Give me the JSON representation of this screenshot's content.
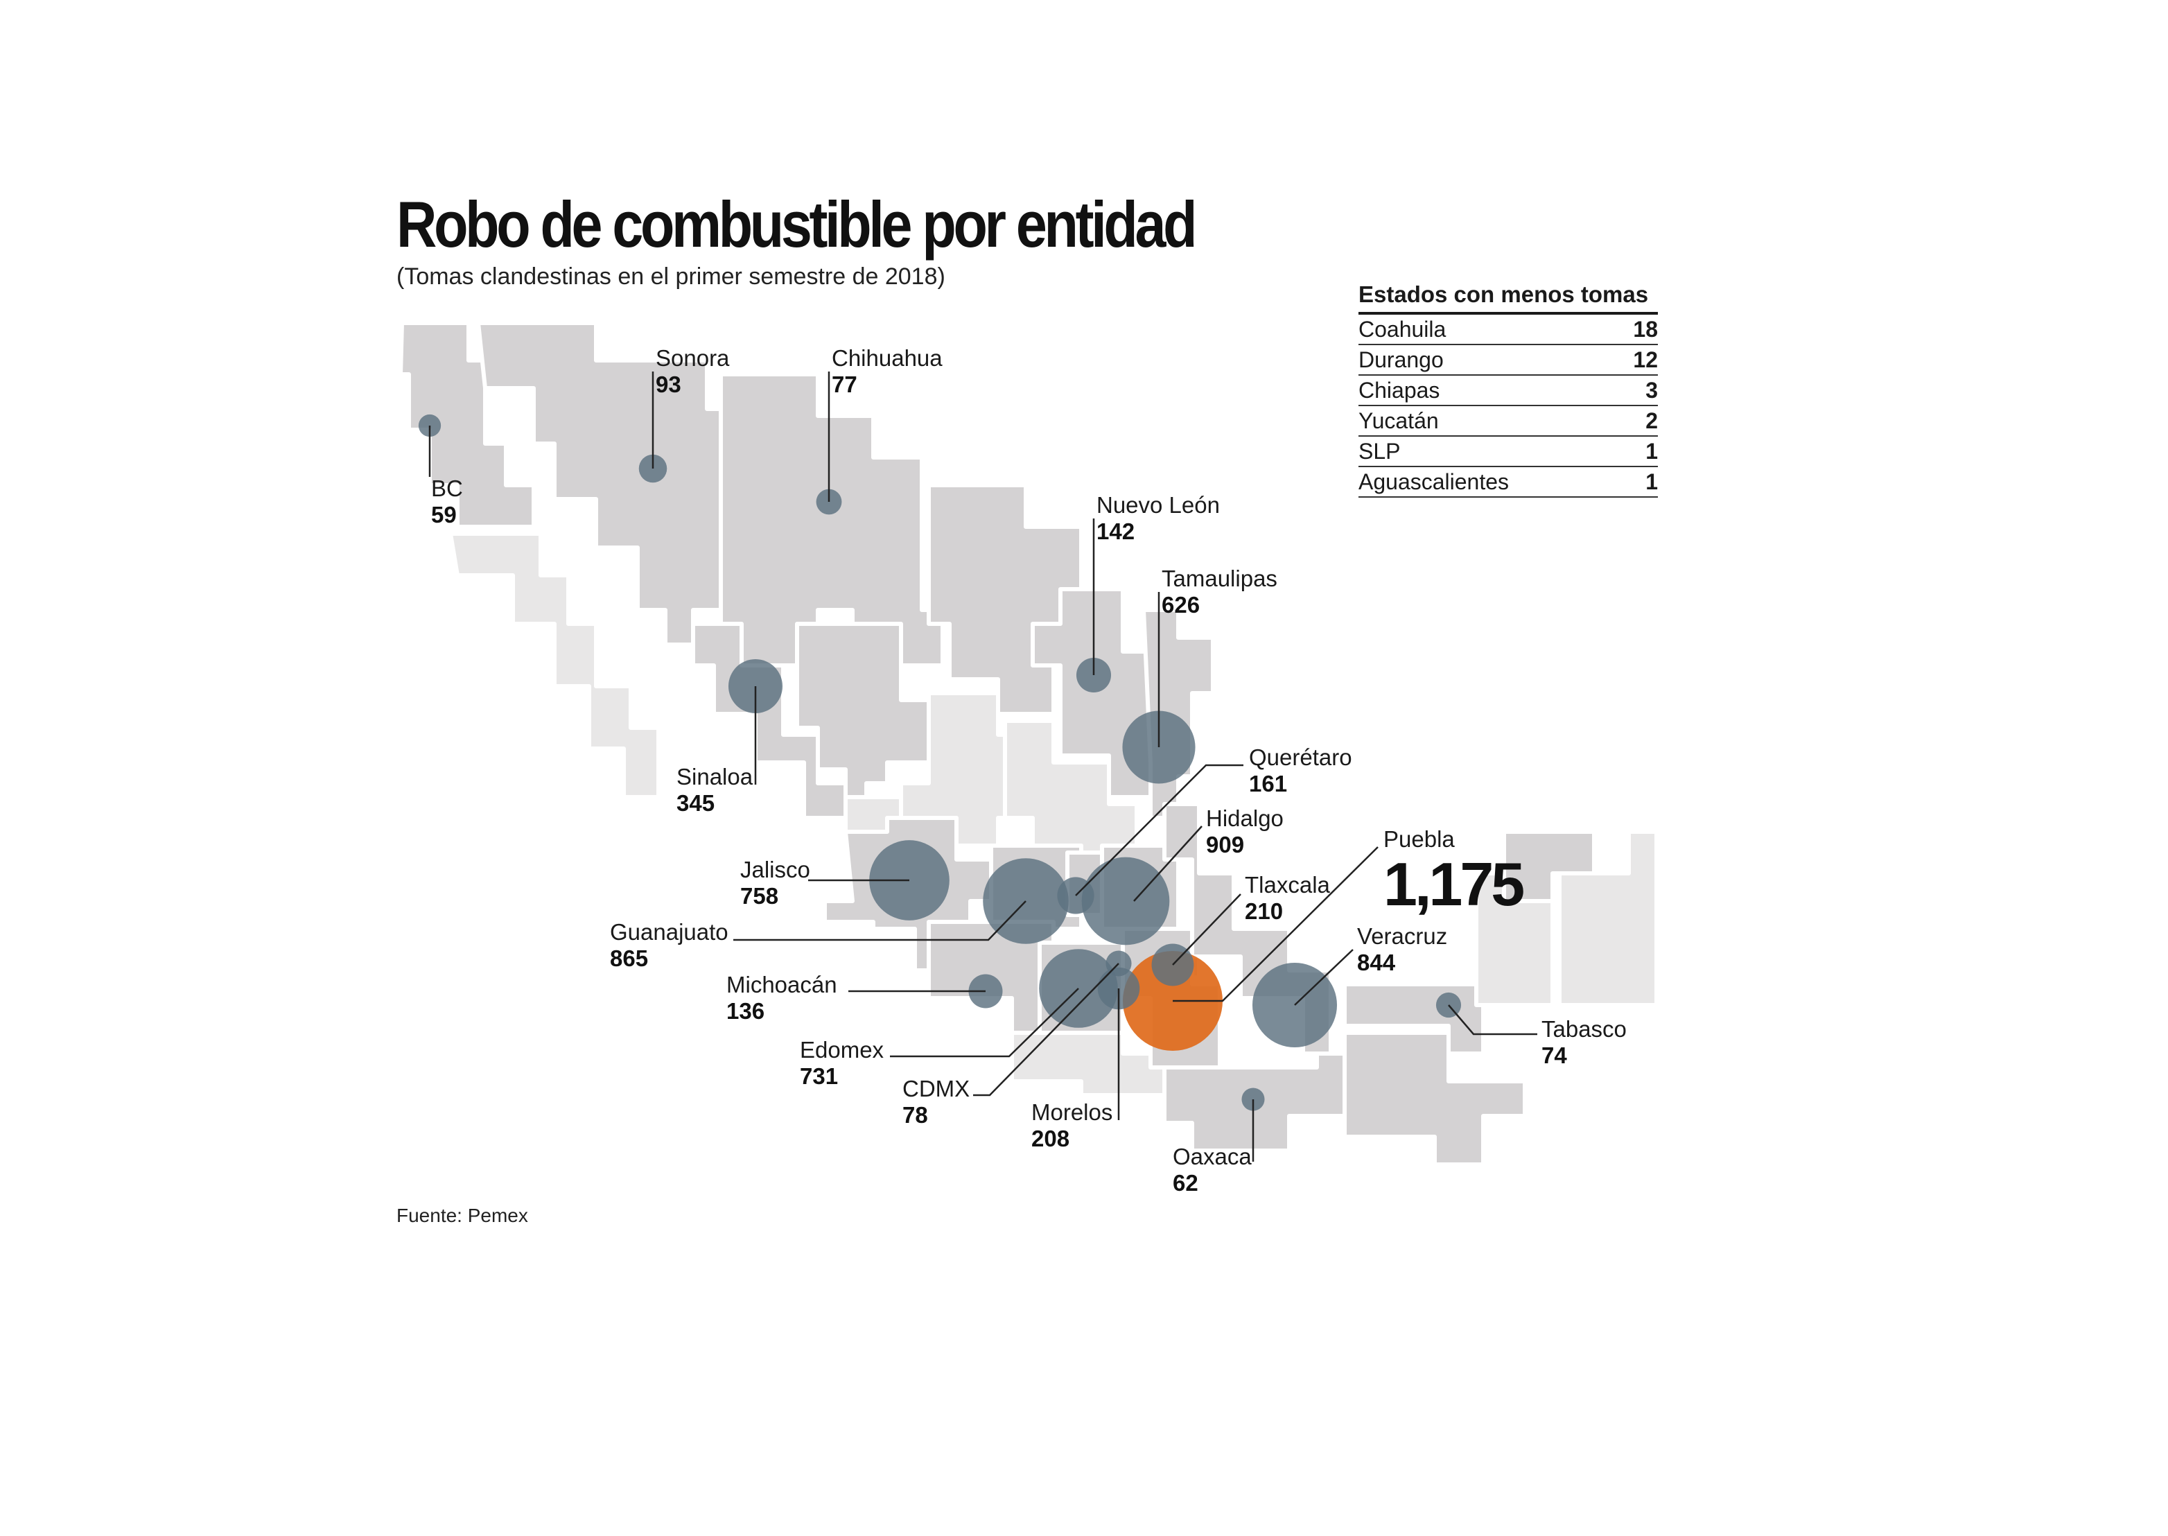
{
  "title": "Robo de combustible por entidad",
  "subtitle": "(Tomas clandestinas en el primer semestre de 2018)",
  "source": "Fuente: Pemex",
  "colors": {
    "bubble": "#5d7280",
    "highlight": "#e06a1b",
    "state_dark": "#d4d2d3",
    "state_light": "#e8e7e7"
  },
  "table": {
    "heading": "Estados con menos tomas",
    "rows": [
      {
        "name": "Coahuila",
        "value": "18"
      },
      {
        "name": "Durango",
        "value": "12"
      },
      {
        "name": "Chiapas",
        "value": "3"
      },
      {
        "name": "Yucatán",
        "value": "2"
      },
      {
        "name": "SLP",
        "value": "1"
      },
      {
        "name": "Aguascalientes",
        "value": "1"
      }
    ]
  },
  "states": [
    {
      "id": "bc",
      "name": "BC",
      "value": "59",
      "highlight": false
    },
    {
      "id": "sonora",
      "name": "Sonora",
      "value": "93",
      "highlight": false
    },
    {
      "id": "chihuahua",
      "name": "Chihuahua",
      "value": "77",
      "highlight": false
    },
    {
      "id": "nuevo-leon",
      "name": "Nuevo León",
      "value": "142",
      "highlight": false
    },
    {
      "id": "tamaulipas",
      "name": "Tamaulipas",
      "value": "626",
      "highlight": false
    },
    {
      "id": "sinaloa",
      "name": "Sinaloa",
      "value": "345",
      "highlight": false
    },
    {
      "id": "queretaro",
      "name": "Querétaro",
      "value": "161",
      "highlight": false
    },
    {
      "id": "hidalgo",
      "name": "Hidalgo",
      "value": "909",
      "highlight": false
    },
    {
      "id": "jalisco",
      "name": "Jalisco",
      "value": "758",
      "highlight": false
    },
    {
      "id": "puebla",
      "name": "Puebla",
      "value": "1,175",
      "highlight": true
    },
    {
      "id": "tlaxcala",
      "name": "Tlaxcala",
      "value": "210",
      "highlight": false
    },
    {
      "id": "guanajuato",
      "name": "Guanajuato",
      "value": "865",
      "highlight": false
    },
    {
      "id": "veracruz",
      "name": "Veracruz",
      "value": "844",
      "highlight": false
    },
    {
      "id": "michoacan",
      "name": "Michoacán",
      "value": "136",
      "highlight": false
    },
    {
      "id": "tabasco",
      "name": "Tabasco",
      "value": "74",
      "highlight": false
    },
    {
      "id": "edomex",
      "name": "Edomex",
      "value": "731",
      "highlight": false
    },
    {
      "id": "cdmx",
      "name": "CDMX",
      "value": "78",
      "highlight": false
    },
    {
      "id": "morelos",
      "name": "Morelos",
      "value": "208",
      "highlight": false
    },
    {
      "id": "oaxaca",
      "name": "Oaxaca",
      "value": "62",
      "highlight": false
    }
  ]
}
